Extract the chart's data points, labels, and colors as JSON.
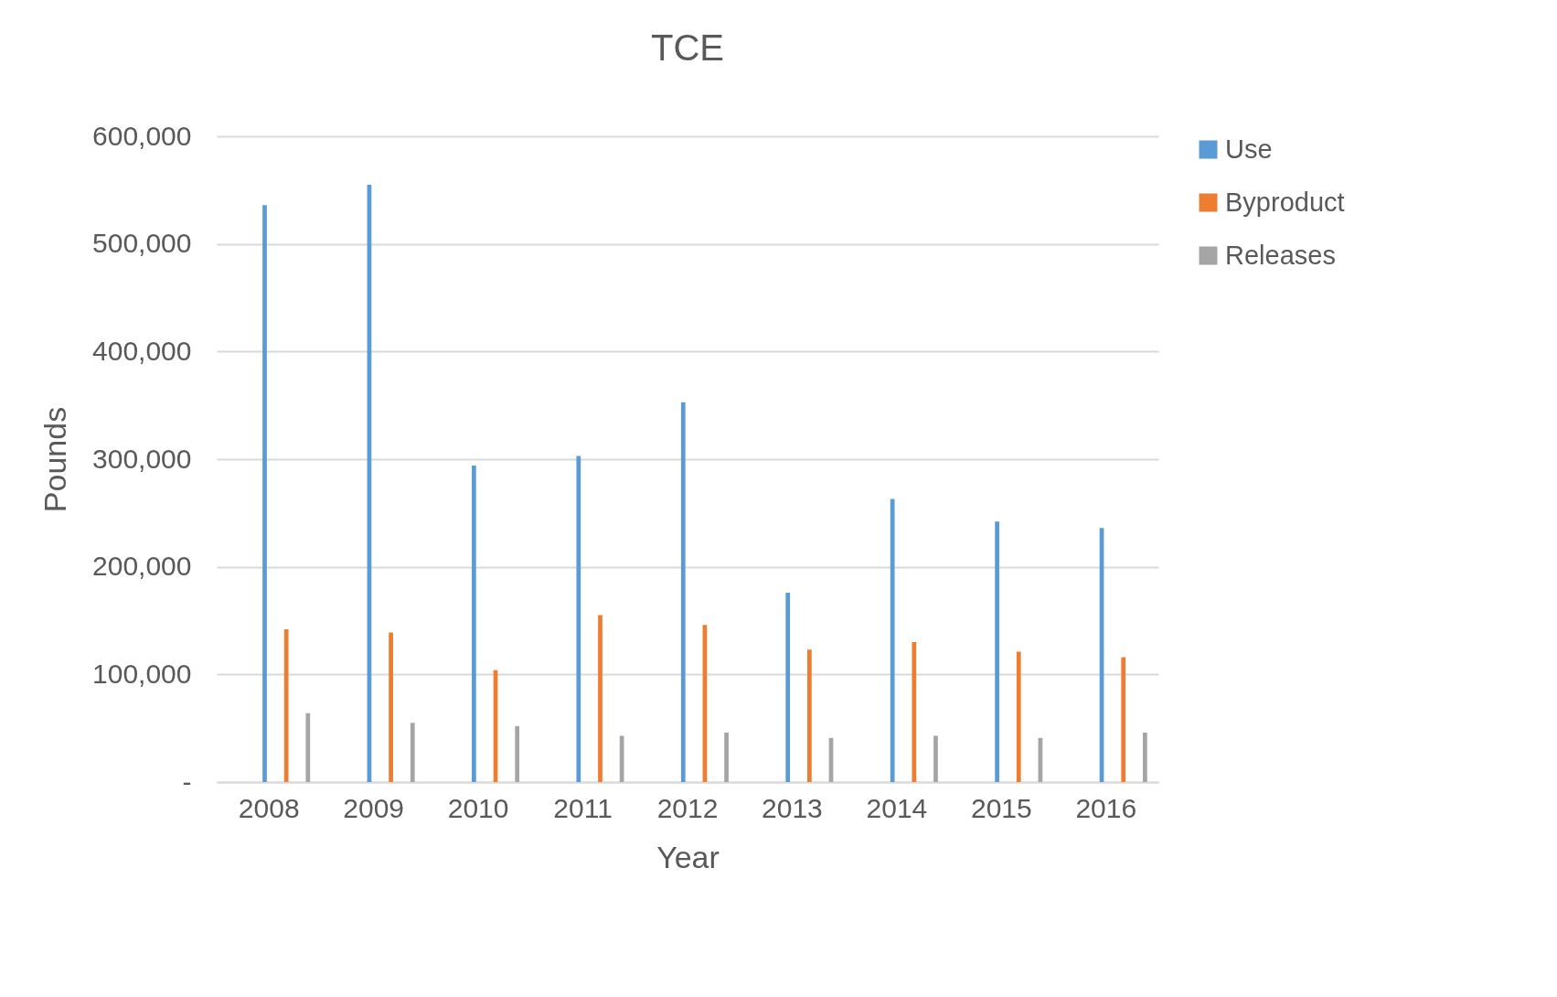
{
  "chart_data": {
    "type": "bar",
    "title": "TCE",
    "xlabel": "Year",
    "ylabel": "Pounds",
    "categories": [
      "2008",
      "2009",
      "2010",
      "2011",
      "2012",
      "2013",
      "2014",
      "2015",
      "2016"
    ],
    "series": [
      {
        "name": "Use",
        "color": "#5b9bd5",
        "values": [
          536000,
          555000,
          294000,
          303000,
          353000,
          176000,
          263000,
          242000,
          236000
        ]
      },
      {
        "name": "Byproduct",
        "color": "#ed7d31",
        "values": [
          142000,
          139000,
          104000,
          155000,
          146000,
          123000,
          130000,
          121000,
          116000
        ]
      },
      {
        "name": "Releases",
        "color": "#a5a5a5",
        "values": [
          64000,
          55000,
          52000,
          43000,
          46000,
          41000,
          43000,
          41000,
          46000
        ]
      }
    ],
    "ylim": [
      0,
      600000
    ],
    "yticks": [
      {
        "value": 0,
        "label": "-"
      },
      {
        "value": 100000,
        "label": "100,000"
      },
      {
        "value": 200000,
        "label": "200,000"
      },
      {
        "value": 300000,
        "label": "300,000"
      },
      {
        "value": 400000,
        "label": "400,000"
      },
      {
        "value": 500000,
        "label": "500,000"
      },
      {
        "value": 600000,
        "label": "600,000"
      }
    ],
    "grid": "y",
    "legend": "right"
  }
}
